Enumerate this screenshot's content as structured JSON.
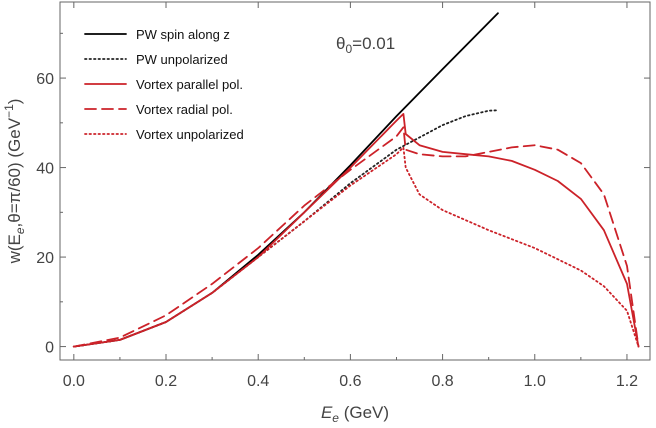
{
  "chart_data": {
    "type": "line",
    "xlabel": {
      "main": "E",
      "sub": "e",
      "rest": " (GeV)"
    },
    "ylabel": {
      "p1": "w(E",
      "sub1": "e",
      "p2": ",θ=π/60) (GeV",
      "sup": "−1",
      "p3": ")"
    },
    "annotation": {
      "main": "θ",
      "sub": "0",
      "rest": "=0.01"
    },
    "xlim": [
      -0.03,
      1.25
    ],
    "ylim": [
      -3,
      77
    ],
    "xticks": [
      "0.0",
      "0.2",
      "0.4",
      "0.6",
      "0.8",
      "1.0",
      "1.2"
    ],
    "yticks": [
      "0",
      "20",
      "40",
      "60"
    ],
    "grid": false,
    "legend_position": "top-left",
    "series": [
      {
        "name": "PW spin along z",
        "color": "#000000",
        "dash": "solid",
        "x": [
          0,
          0.1,
          0.2,
          0.3,
          0.4,
          0.5,
          0.6,
          0.7,
          0.8,
          0.92
        ],
        "y": [
          0,
          1.5,
          5.5,
          12,
          20.5,
          30,
          40.5,
          51.5,
          62,
          74.5
        ]
      },
      {
        "name": "PW unpolarized",
        "color": "#222222",
        "dash": "dotted",
        "x": [
          0,
          0.1,
          0.2,
          0.3,
          0.4,
          0.5,
          0.6,
          0.7,
          0.8,
          0.85,
          0.9,
          0.92
        ],
        "y": [
          0,
          1.5,
          5.5,
          12,
          20,
          28,
          36.5,
          44,
          49.5,
          51.5,
          52.7,
          52.8
        ]
      },
      {
        "name": "Vortex parallel pol.",
        "color": "#cc2229",
        "dash": "solid",
        "x": [
          0,
          0.1,
          0.2,
          0.3,
          0.4,
          0.5,
          0.6,
          0.7,
          0.715,
          0.72,
          0.75,
          0.8,
          0.85,
          0.9,
          0.95,
          1.0,
          1.05,
          1.1,
          1.15,
          1.2,
          1.225
        ],
        "y": [
          0,
          1.5,
          5.5,
          12,
          20,
          30,
          40,
          50.5,
          52,
          47.5,
          45,
          43.5,
          43,
          42.5,
          41.5,
          39.5,
          37,
          33,
          26,
          14,
          0
        ]
      },
      {
        "name": "Vortex radial pol.",
        "color": "#cc2229",
        "dash": "dashed",
        "x": [
          0,
          0.1,
          0.2,
          0.3,
          0.4,
          0.5,
          0.6,
          0.7,
          0.715,
          0.72,
          0.75,
          0.8,
          0.85,
          0.9,
          0.95,
          1.0,
          1.05,
          1.1,
          1.15,
          1.2,
          1.225
        ],
        "y": [
          0,
          2,
          7,
          14,
          22,
          31.5,
          39.5,
          47,
          49,
          44,
          43,
          42.5,
          42.5,
          43.5,
          44.5,
          45,
          44,
          41,
          34,
          18,
          0
        ]
      },
      {
        "name": "Vortex unpolarized",
        "color": "#cc2229",
        "dash": "dotted",
        "x": [
          0,
          0.1,
          0.2,
          0.3,
          0.4,
          0.5,
          0.6,
          0.7,
          0.715,
          0.72,
          0.75,
          0.8,
          0.9,
          1.0,
          1.1,
          1.15,
          1.2,
          1.225
        ],
        "y": [
          0,
          1.5,
          5.5,
          12,
          20,
          28,
          36,
          43,
          44.5,
          40,
          34,
          30.5,
          26,
          22,
          17,
          13.5,
          8,
          0
        ]
      }
    ]
  }
}
